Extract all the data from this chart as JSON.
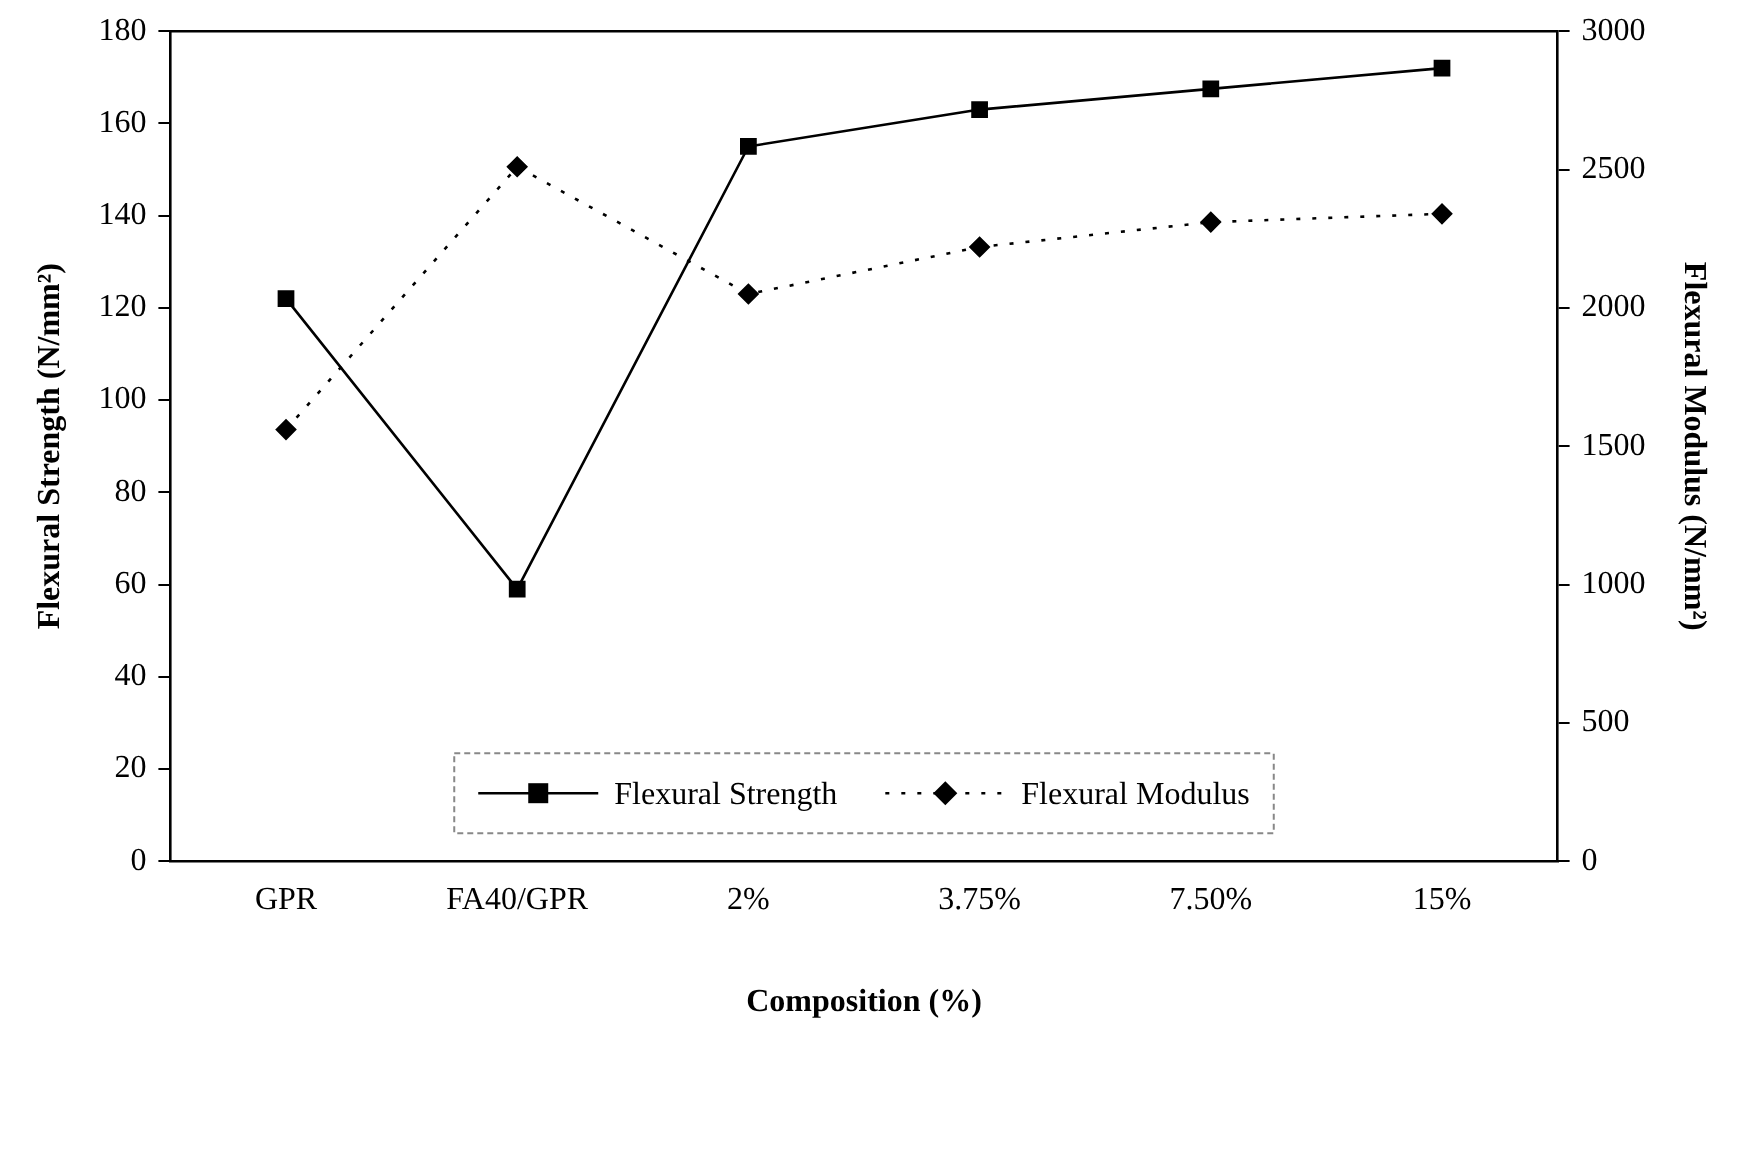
{
  "chart_data": {
    "type": "line",
    "xlabel": "Composition (%)",
    "ylabel": "Flexural Strength (N/mm²)",
    "y2label": "Flexural Modulus (N/mm²)",
    "categories": [
      "GPR",
      "FA40/GPR",
      "2%",
      "3.75%",
      "7.50%",
      "15%"
    ],
    "series": [
      {
        "name": "Flexural Strength",
        "color": "#000000",
        "values": [
          122,
          59,
          155,
          163,
          167.5,
          172
        ],
        "marker": "square",
        "line_style": "solid"
      },
      {
        "name": "Flexural Modulus",
        "color": "#000000",
        "values": [
          1560,
          2510,
          2050,
          2220,
          2310,
          2340
        ],
        "axis": "y2",
        "marker": "diamond",
        "line_style": "dotted"
      }
    ],
    "ylim": [
      0,
      180
    ],
    "yticks": [
      0,
      20,
      40,
      60,
      80,
      100,
      120,
      140,
      160,
      180
    ],
    "y2lim": [
      0,
      3000
    ],
    "y2ticks": [
      0,
      500,
      1000,
      1500,
      2000,
      2500,
      3000
    ],
    "grid": false,
    "legend": "bottom"
  }
}
